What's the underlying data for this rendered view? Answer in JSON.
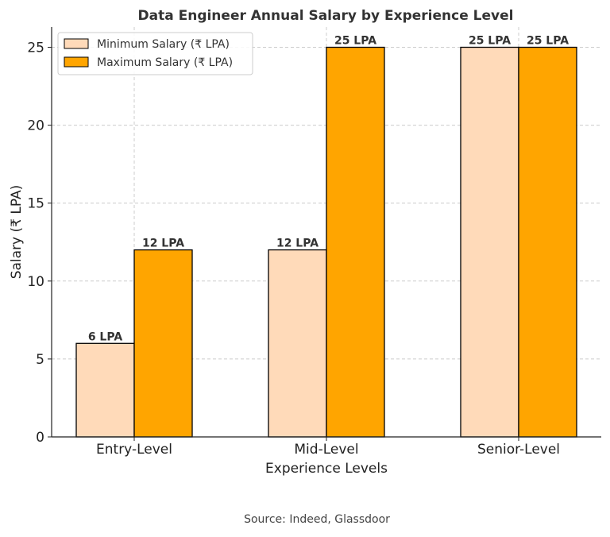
{
  "chart_data": {
    "type": "bar",
    "title": "Data Engineer Annual Salary by Experience Level",
    "xlabel": "Experience Levels",
    "ylabel": "Salary (₹ LPA)",
    "categories": [
      "Entry-Level",
      "Mid-Level",
      "Senior-Level"
    ],
    "series": [
      {
        "name": "Minimum Salary (₹ LPA)",
        "values": [
          6,
          12,
          25
        ],
        "labels": [
          "6 LPA",
          "12 LPA",
          "25 LPA"
        ],
        "color": "#FFDAB9"
      },
      {
        "name": "Maximum Salary (₹ LPA)",
        "values": [
          12,
          25,
          25
        ],
        "labels": [
          "12 LPA",
          "25 LPA",
          "25 LPA"
        ],
        "color": "#FFA500"
      }
    ],
    "ylim": [
      0,
      26.3
    ],
    "yticks": [
      0,
      5,
      10,
      15,
      20,
      25
    ],
    "grid": true,
    "legend_position": "top-left"
  },
  "source": "Source: Indeed, Glassdoor"
}
